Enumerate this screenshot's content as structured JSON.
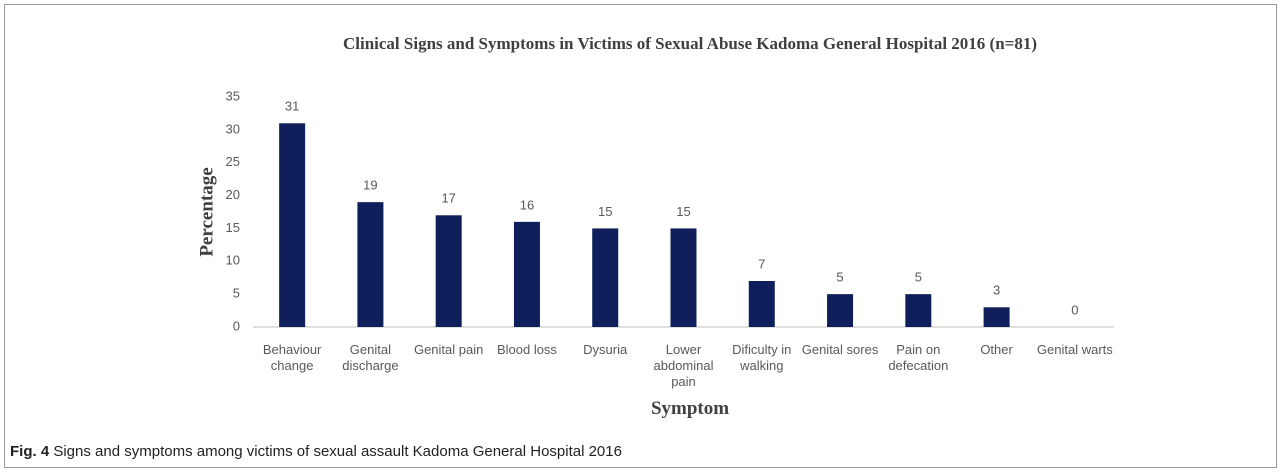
{
  "chart_data": {
    "type": "bar",
    "title": "Clinical Signs and Symptoms in Victims of Sexual Abuse Kadoma General Hospital 2016 (n=81)",
    "x_label": "Symptom",
    "y_label": "Percentage",
    "categories": [
      "Behaviour change",
      "Genital discharge",
      "Genital pain",
      "Blood loss",
      "Dysuria",
      "Lower abdominal pain",
      "Dificulty in walking",
      "Genital sores",
      "Pain on defecation",
      "Other",
      "Genital warts"
    ],
    "values": [
      31,
      19,
      17,
      16,
      15,
      15,
      7,
      5,
      5,
      3,
      0
    ],
    "color": "#0e1f5b",
    "ylim": [
      0,
      35
    ],
    "yticks": [
      0,
      5,
      10,
      15,
      20,
      25,
      30,
      35
    ],
    "grid": false
  },
  "caption": {
    "label": "Fig. 4",
    "text": "Signs and symptoms among victims of sexual assault Kadoma General Hospital 2016"
  }
}
